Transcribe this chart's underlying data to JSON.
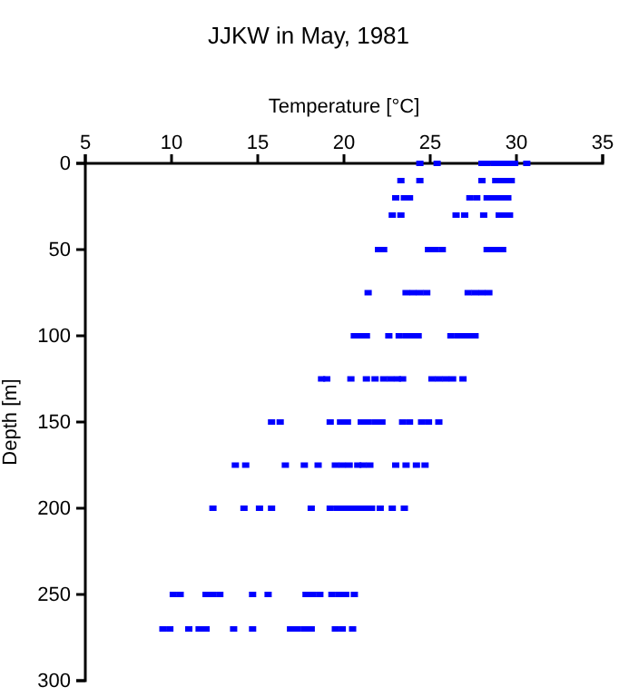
{
  "chart_data": {
    "type": "scatter",
    "title": "JJKW in May, 1981",
    "xlabel": "Temperature [°C]",
    "ylabel": "Depth [m]",
    "xlim": [
      5,
      35
    ],
    "xticks": [
      5,
      10,
      15,
      20,
      25,
      30,
      35
    ],
    "ylim": [
      300,
      0
    ],
    "yticks": [
      0,
      50,
      100,
      150,
      200,
      250,
      300
    ],
    "grid": false,
    "marker": "square",
    "series": [
      {
        "color": "#0000ff",
        "x": [
          24.4,
          25.4,
          28.0,
          28.3,
          28.7,
          29.0,
          29.3,
          29.6,
          29.9,
          30.6,
          23.3,
          24.4,
          28.0,
          28.8,
          29.1,
          29.4,
          29.7,
          23.0,
          23.5,
          23.8,
          27.3,
          27.7,
          28.3,
          28.6,
          28.9,
          29.2,
          29.5,
          22.8,
          23.3,
          26.5,
          27.0,
          28.1,
          29.0,
          29.3,
          29.6,
          22.0,
          22.3,
          24.9,
          25.3,
          25.7,
          28.3,
          28.6,
          28.9,
          29.2,
          21.4,
          23.6,
          24.0,
          24.4,
          24.8,
          27.2,
          27.6,
          28.0,
          28.4,
          20.6,
          20.9,
          21.3,
          22.6,
          23.2,
          23.6,
          24.0,
          24.3,
          26.2,
          26.6,
          27.0,
          27.3,
          27.6,
          18.7,
          19.0,
          20.4,
          21.3,
          21.8,
          22.3,
          22.7,
          23.1,
          23.4,
          25.1,
          25.5,
          25.9,
          26.3,
          26.9,
          15.8,
          16.3,
          19.2,
          19.8,
          20.2,
          21.0,
          21.4,
          21.8,
          22.2,
          23.4,
          23.8,
          24.5,
          24.9,
          25.5,
          13.7,
          14.3,
          16.6,
          17.7,
          18.5,
          19.5,
          19.9,
          20.3,
          20.8,
          21.1,
          21.5,
          23.0,
          23.6,
          24.2,
          24.7,
          12.4,
          14.2,
          15.1,
          15.8,
          18.1,
          19.2,
          19.6,
          20.0,
          20.4,
          20.7,
          21.0,
          21.3,
          21.6,
          22.1,
          22.8,
          23.5,
          10.1,
          10.5,
          12.0,
          12.4,
          12.8,
          14.7,
          15.6,
          17.8,
          18.2,
          18.6,
          19.3,
          19.7,
          20.1,
          20.6,
          9.5,
          9.9,
          11.0,
          11.6,
          12.0,
          13.6,
          14.7,
          16.9,
          17.3,
          17.7,
          18.1,
          19.5,
          19.9,
          20.5
        ],
        "values": [
          0,
          0,
          0,
          0,
          0,
          0,
          0,
          0,
          0,
          0,
          10,
          10,
          10,
          10,
          10,
          10,
          10,
          20,
          20,
          20,
          20,
          20,
          20,
          20,
          20,
          20,
          20,
          30,
          30,
          30,
          30,
          30,
          30,
          30,
          30,
          50,
          50,
          50,
          50,
          50,
          50,
          50,
          50,
          50,
          75,
          75,
          75,
          75,
          75,
          75,
          75,
          75,
          75,
          100,
          100,
          100,
          100,
          100,
          100,
          100,
          100,
          100,
          100,
          100,
          100,
          100,
          125,
          125,
          125,
          125,
          125,
          125,
          125,
          125,
          125,
          125,
          125,
          125,
          125,
          125,
          150,
          150,
          150,
          150,
          150,
          150,
          150,
          150,
          150,
          150,
          150,
          150,
          150,
          150,
          175,
          175,
          175,
          175,
          175,
          175,
          175,
          175,
          175,
          175,
          175,
          175,
          175,
          175,
          175,
          200,
          200,
          200,
          200,
          200,
          200,
          200,
          200,
          200,
          200,
          200,
          200,
          200,
          200,
          200,
          200,
          250,
          250,
          250,
          250,
          250,
          250,
          250,
          250,
          250,
          250,
          250,
          250,
          250,
          250,
          270,
          270,
          270,
          270,
          270,
          270,
          270,
          270,
          270,
          270,
          270,
          270,
          270,
          270
        ]
      }
    ]
  }
}
